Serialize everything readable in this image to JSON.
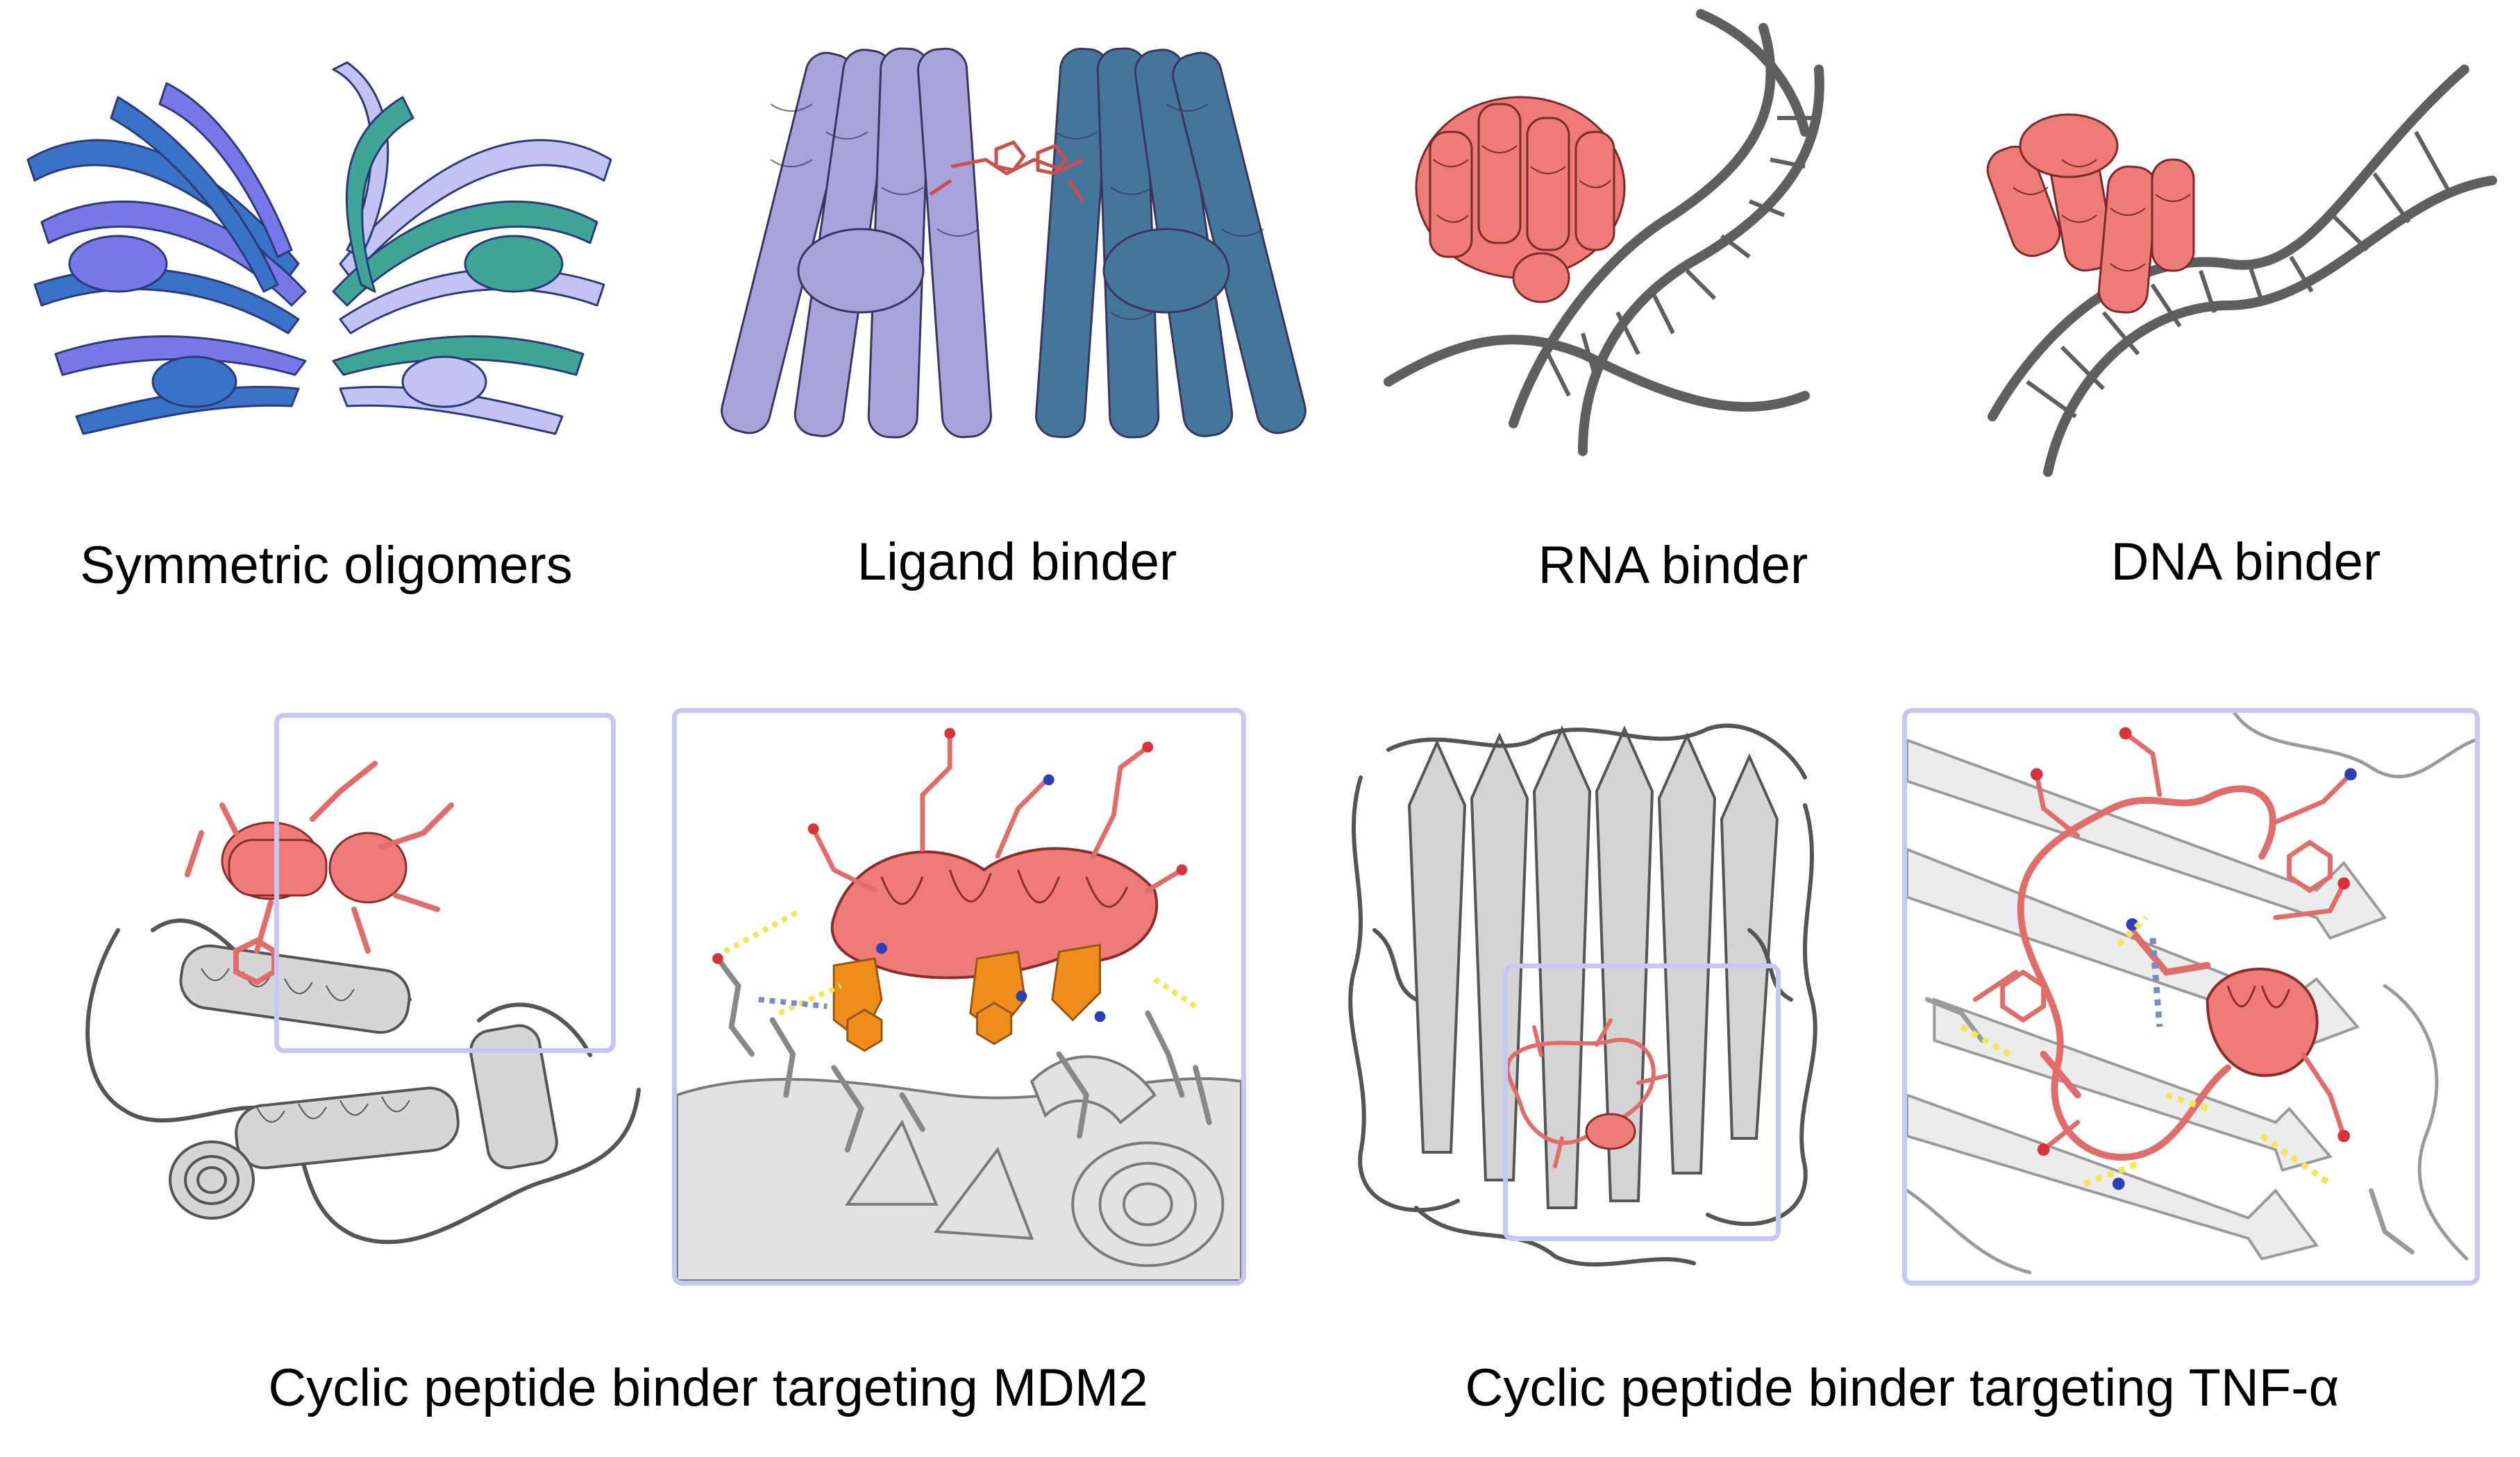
{
  "captions": {
    "symmetric_oligomers": "Symmetric oligomers",
    "ligand_binder": "Ligand binder",
    "rna_binder": "RNA binder",
    "dna_binder": "DNA binder",
    "cyclic_mdm2": "Cyclic peptide binder targeting MDM2",
    "cyclic_tnf": "Cyclic peptide binder targeting TNF-α"
  },
  "colors": {
    "oligomer_blue": "#3a72c8",
    "oligomer_violet": "#7a78e8",
    "oligomer_lavender": "#c3c3f4",
    "oligomer_teal": "#3fa596",
    "ligand_lavender": "#a9a3dc",
    "ligand_steel": "#44769c",
    "ligand_red": "#c9504c",
    "salmon": "#ee7b78",
    "nucleic_grey": "#5f5f5f",
    "target_grey": "#d6d6d6",
    "outline_grey": "#555555",
    "orange_hotspot": "#ef8d1c",
    "hbond_yellow": "#f3e65a",
    "nitrogen_blue": "#2b3fb8",
    "oxygen_red": "#d8323c",
    "zoom_frame": "#c6c8f3"
  }
}
